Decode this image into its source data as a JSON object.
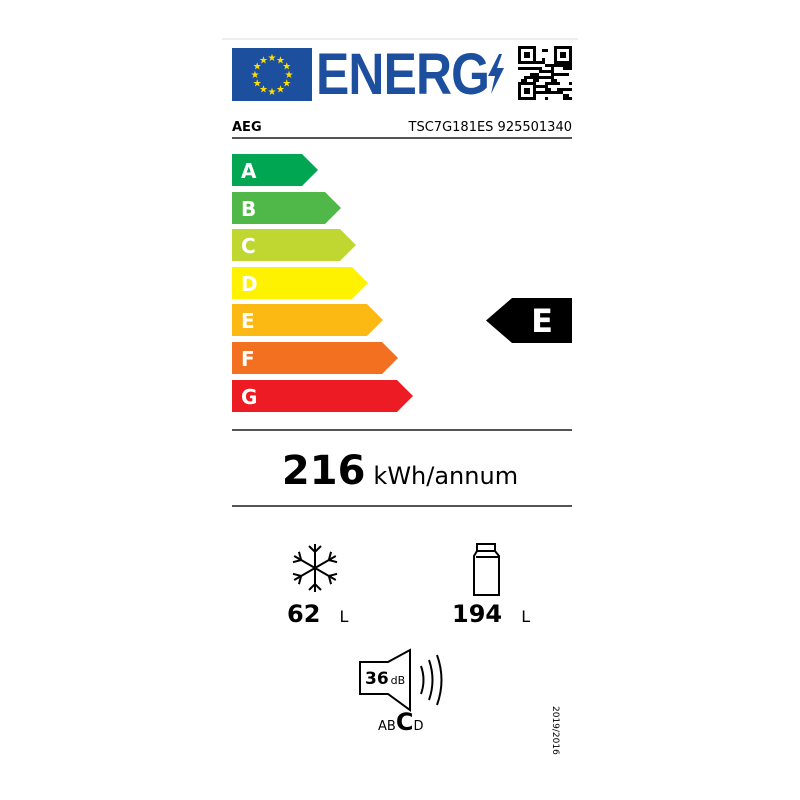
{
  "header": {
    "title": "ENERG",
    "brand": "AEG",
    "model": "TSC7G181ES 925501340"
  },
  "scale": {
    "classes": [
      {
        "letter": "A",
        "color": "#00a651"
      },
      {
        "letter": "B",
        "color": "#50b848"
      },
      {
        "letter": "C",
        "color": "#bfd730"
      },
      {
        "letter": "D",
        "color": "#fff200"
      },
      {
        "letter": "E",
        "color": "#fdb913"
      },
      {
        "letter": "F",
        "color": "#f37021"
      },
      {
        "letter": "G",
        "color": "#ed1c24"
      }
    ],
    "rating": "E"
  },
  "consumption": {
    "value": "216",
    "unit": "kWh/annum"
  },
  "freezer": {
    "icon": "snowflake-icon",
    "value": "62",
    "unit": "L"
  },
  "fridge": {
    "icon": "bottle-icon",
    "value": "194",
    "unit": "L"
  },
  "noise": {
    "icon": "speaker-icon",
    "value": "36",
    "unit": "dB",
    "classes_before": "AB",
    "class": "C",
    "classes_after": "D"
  },
  "regulation": "2019/2016",
  "colors": {
    "eu_blue": "#1d4f9f",
    "eu_star": "#ffdd00"
  }
}
